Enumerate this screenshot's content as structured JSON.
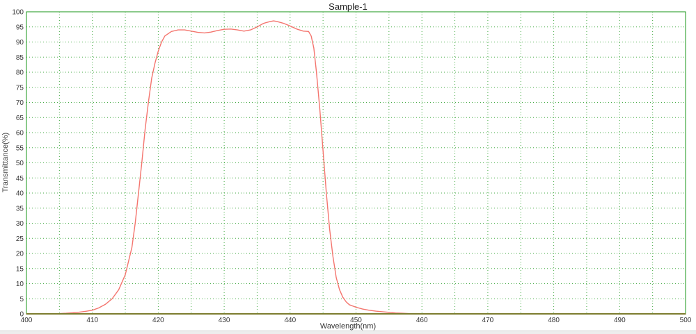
{
  "chart_data": {
    "type": "line",
    "title": "Sample-1",
    "xlabel": "Wavelength(nm)",
    "ylabel": "Transmittance(%)",
    "xlim": [
      400,
      500
    ],
    "ylim": [
      0,
      100
    ],
    "x_ticks": [
      400,
      410,
      420,
      430,
      440,
      450,
      460,
      470,
      480,
      490,
      500
    ],
    "y_ticks": [
      0,
      5,
      10,
      15,
      20,
      25,
      30,
      35,
      40,
      45,
      50,
      55,
      60,
      65,
      70,
      75,
      80,
      85,
      90,
      95,
      100
    ],
    "grid": "dotted, every 5 units both axes",
    "legend_position": "none",
    "colors": {
      "curve": "#f4756e",
      "grid": "#2fa12f",
      "border": "#149614",
      "bottom_axis": "#7c7c2e",
      "tick_text": "#333333"
    },
    "series": [
      {
        "name": "Sample-1",
        "points": [
          [
            400,
            0
          ],
          [
            403,
            0
          ],
          [
            405,
            0.1
          ],
          [
            406,
            0.2
          ],
          [
            407,
            0.35
          ],
          [
            408,
            0.55
          ],
          [
            409,
            0.85
          ],
          [
            410,
            1.2
          ],
          [
            411,
            2
          ],
          [
            412,
            3.2
          ],
          [
            413,
            5
          ],
          [
            414,
            8
          ],
          [
            415,
            13
          ],
          [
            416,
            22
          ],
          [
            416.5,
            30
          ],
          [
            417,
            40
          ],
          [
            417.5,
            50
          ],
          [
            418,
            61
          ],
          [
            418.5,
            70
          ],
          [
            419,
            78
          ],
          [
            419.5,
            83
          ],
          [
            420,
            87
          ],
          [
            420.5,
            90
          ],
          [
            421,
            92
          ],
          [
            422,
            93.5
          ],
          [
            423,
            94
          ],
          [
            424,
            94
          ],
          [
            425,
            93.6
          ],
          [
            426,
            93.2
          ],
          [
            427,
            93
          ],
          [
            428,
            93.3
          ],
          [
            429,
            93.8
          ],
          [
            430,
            94.2
          ],
          [
            431,
            94.3
          ],
          [
            432,
            94
          ],
          [
            433,
            93.6
          ],
          [
            434,
            94
          ],
          [
            435,
            95
          ],
          [
            436,
            96.2
          ],
          [
            437,
            96.8
          ],
          [
            437.5,
            97
          ],
          [
            438,
            96.8
          ],
          [
            439,
            96.2
          ],
          [
            440,
            95.3
          ],
          [
            441,
            94.3
          ],
          [
            442,
            93.6
          ],
          [
            442.8,
            93.5
          ],
          [
            443.2,
            92
          ],
          [
            443.6,
            88
          ],
          [
            444,
            80
          ],
          [
            444.5,
            68
          ],
          [
            445,
            54
          ],
          [
            445.5,
            40
          ],
          [
            446,
            28
          ],
          [
            446.5,
            19
          ],
          [
            447,
            12
          ],
          [
            447.5,
            8
          ],
          [
            448,
            5.5
          ],
          [
            448.5,
            4
          ],
          [
            449,
            3
          ],
          [
            450,
            2.2
          ],
          [
            451,
            1.6
          ],
          [
            452,
            1.2
          ],
          [
            453,
            0.9
          ],
          [
            454,
            0.7
          ],
          [
            455,
            0.5
          ],
          [
            456,
            0.3
          ],
          [
            457,
            0.2
          ],
          [
            458,
            0.1
          ],
          [
            460,
            0
          ],
          [
            465,
            0
          ],
          [
            470,
            0
          ],
          [
            475,
            0
          ],
          [
            480,
            0
          ],
          [
            485,
            0
          ],
          [
            490,
            0
          ],
          [
            495,
            0
          ],
          [
            500,
            0
          ]
        ]
      }
    ]
  }
}
